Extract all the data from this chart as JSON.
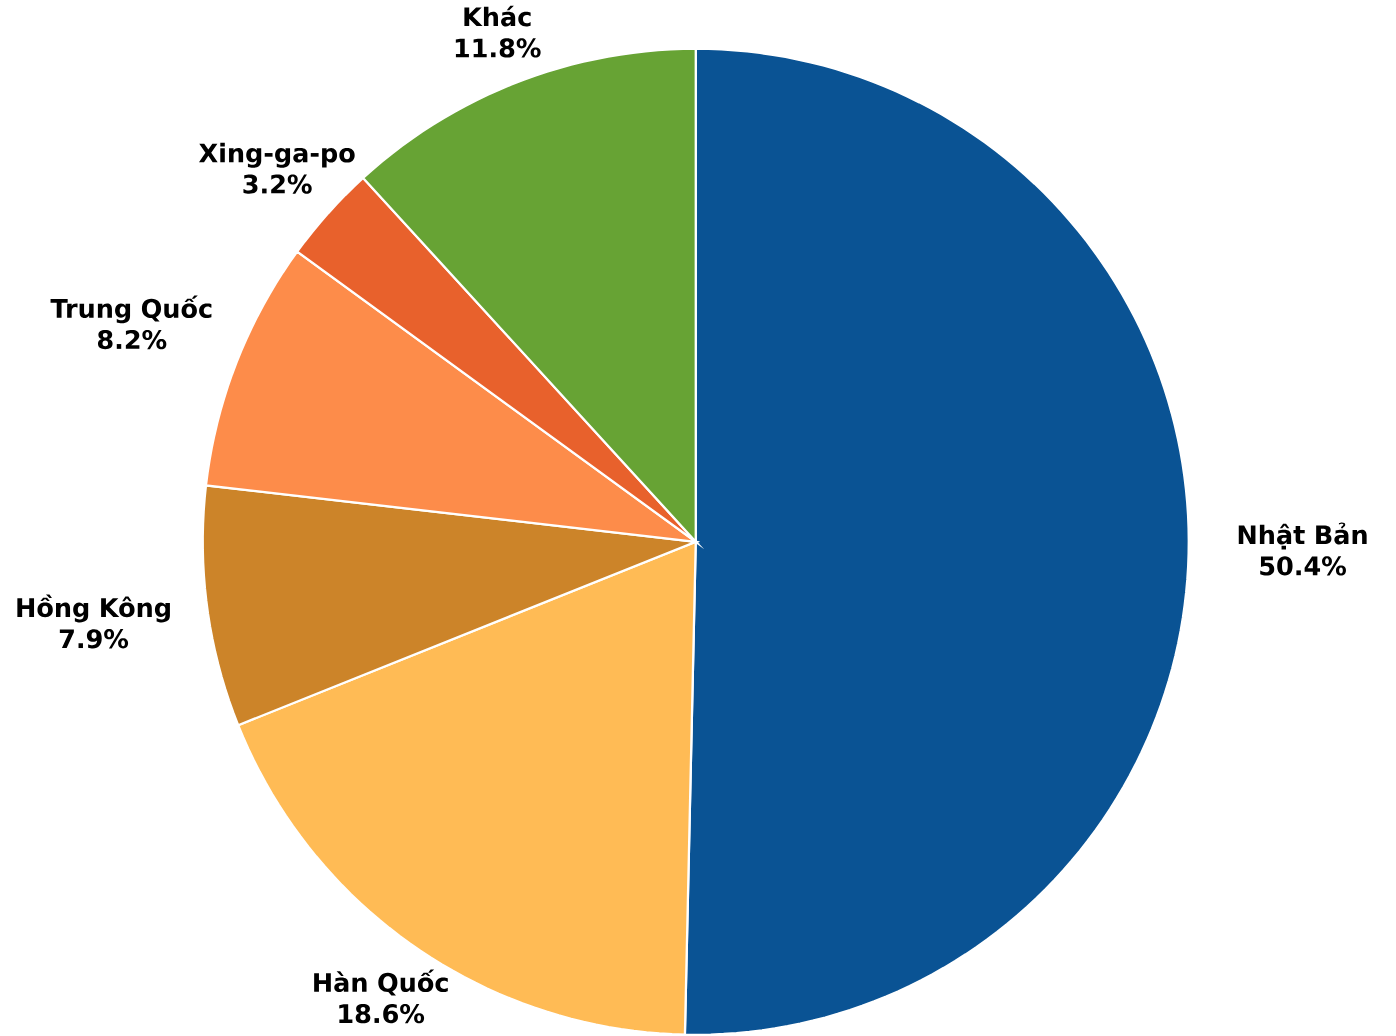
{
  "chart_data": {
    "type": "pie",
    "categories": [
      "Nhật Bản",
      "Hàn Quốc",
      "Hồng Kông",
      "Trung Quốc",
      "Xing-ga-po",
      "Khác"
    ],
    "values": [
      50.4,
      18.6,
      7.9,
      8.2,
      3.2,
      11.8
    ],
    "value_labels": [
      "50.4%",
      "18.6%",
      "7.9%",
      "8.2%",
      "3.2%",
      "11.8%"
    ],
    "colors": [
      "#0a5394",
      "#ffbb55",
      "#cc8429",
      "#fd8c4a",
      "#e8612c",
      "#67a334"
    ]
  }
}
